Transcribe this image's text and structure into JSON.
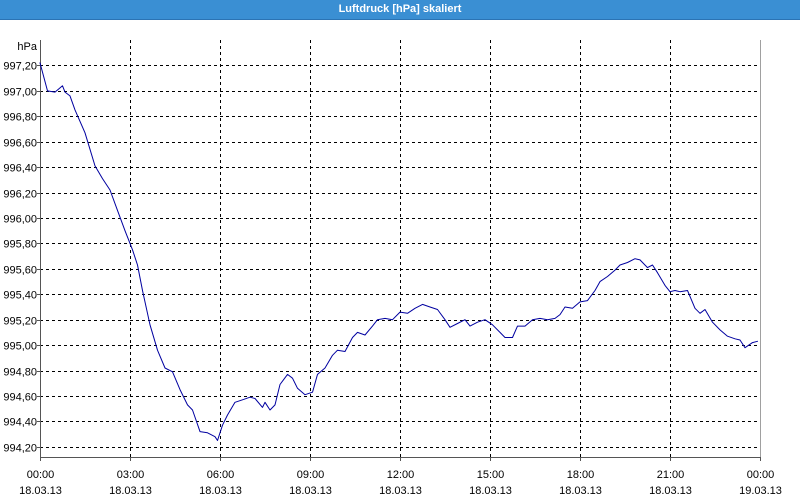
{
  "colors": {
    "title_bar": "#3a8fd3",
    "title_text": "#ffffff",
    "background": "#ffffff",
    "grid": "#000000",
    "axis": "#555555"
  },
  "chart_data": {
    "type": "line",
    "title": "Luftdruck [hPa] skaliert",
    "ylabel": "hPa",
    "xlim": [
      "18.03.13 00:00",
      "19.03.13 00:00"
    ],
    "ylim": [
      994.12,
      997.4
    ],
    "grid": true,
    "y_ticks": [
      "997,20",
      "997,00",
      "996,80",
      "996,60",
      "996,40",
      "996,20",
      "996,00",
      "995,80",
      "995,60",
      "995,40",
      "995,20",
      "995,00",
      "994,80",
      "994,60",
      "994,40",
      "994,20"
    ],
    "x_ticks": [
      {
        "time": "00:00",
        "date": "18.03.13"
      },
      {
        "time": "03:00",
        "date": "18.03.13"
      },
      {
        "time": "06:00",
        "date": "18.03.13"
      },
      {
        "time": "09:00",
        "date": "18.03.13"
      },
      {
        "time": "12:00",
        "date": "18.03.13"
      },
      {
        "time": "15:00",
        "date": "18.03.13"
      },
      {
        "time": "18:00",
        "date": "18.03.13"
      },
      {
        "time": "21:00",
        "date": "18.03.13"
      },
      {
        "time": "00:00",
        "date": "19.03.13"
      }
    ],
    "series": [
      {
        "color": "#0000a0",
        "x": [
          "18.03.13 00:00",
          "18.03.13 00:15",
          "18.03.13 00:30",
          "18.03.13 00:45",
          "18.03.13 00:50",
          "18.03.13 01:00",
          "18.03.13 01:10",
          "18.03.13 01:30",
          "18.03.13 01:50",
          "18.03.13 02:05",
          "18.03.13 02:20",
          "18.03.13 02:35",
          "18.03.13 02:50",
          "18.03.13 03:05",
          "18.03.13 03:15",
          "18.03.13 03:25",
          "18.03.13 03:40",
          "18.03.13 03:55",
          "18.03.13 04:10",
          "18.03.13 04:25",
          "18.03.13 04:40",
          "18.03.13 04:55",
          "18.03.13 05:05",
          "18.03.13 05:20",
          "18.03.13 05:35",
          "18.03.13 05:50",
          "18.03.13 05:55",
          "18.03.13 06:05",
          "18.03.13 06:15",
          "18.03.13 06:30",
          "18.03.13 06:45",
          "18.03.13 07:00",
          "18.03.13 07:10",
          "18.03.13 07:25",
          "18.03.13 07:30",
          "18.03.13 07:40",
          "18.03.13 07:50",
          "18.03.13 08:00",
          "18.03.13 08:15",
          "18.03.13 08:25",
          "18.03.13 08:35",
          "18.03.13 08:50",
          "18.03.13 09:05",
          "18.03.13 09:15",
          "18.03.13 09:30",
          "18.03.13 09:45",
          "18.03.13 09:55",
          "18.03.13 10:10",
          "18.03.13 10:25",
          "18.03.13 10:35",
          "18.03.13 10:50",
          "18.03.13 11:05",
          "18.03.13 11:15",
          "18.03.13 11:30",
          "18.03.13 11:45",
          "18.03.13 12:00",
          "18.03.13 12:15",
          "18.03.13 12:30",
          "18.03.13 12:45",
          "18.03.13 13:00",
          "18.03.13 13:15",
          "18.03.13 13:30",
          "18.03.13 13:40",
          "18.03.13 13:55",
          "18.03.13 14:10",
          "18.03.13 14:20",
          "18.03.13 14:35",
          "18.03.13 14:50",
          "18.03.13 15:05",
          "18.03.13 15:20",
          "18.03.13 15:30",
          "18.03.13 15:45",
          "18.03.13 15:55",
          "18.03.13 16:10",
          "18.03.13 16:25",
          "18.03.13 16:40",
          "18.03.13 16:55",
          "18.03.13 17:10",
          "18.03.13 17:20",
          "18.03.13 17:30",
          "18.03.13 17:45",
          "18.03.13 18:00",
          "18.03.13 18:15",
          "18.03.13 18:30",
          "18.03.13 18:40",
          "18.03.13 18:55",
          "18.03.13 19:10",
          "18.03.13 19:20",
          "18.03.13 19:35",
          "18.03.13 19:50",
          "18.03.13 20:00",
          "18.03.13 20:15",
          "18.03.13 20:25",
          "18.03.13 20:35",
          "18.03.13 20:50",
          "18.03.13 21:00",
          "18.03.13 21:10",
          "18.03.13 21:20",
          "18.03.13 21:35",
          "18.03.13 21:50",
          "18.03.13 22:00",
          "18.03.13 22:10",
          "18.03.13 22:25",
          "18.03.13 22:40",
          "18.03.13 22:55",
          "18.03.13 23:10",
          "18.03.13 23:20",
          "18.03.13 23:30",
          "18.03.13 23:45",
          "18.03.13 23:55"
        ],
        "y": [
          997.22,
          997.0,
          996.99,
          997.04,
          996.99,
          996.96,
          996.85,
          996.67,
          996.41,
          996.31,
          996.22,
          996.06,
          995.9,
          995.75,
          995.63,
          995.43,
          995.16,
          994.96,
          994.82,
          994.79,
          994.65,
          994.53,
          994.49,
          994.32,
          994.31,
          994.28,
          994.25,
          994.37,
          994.45,
          994.55,
          994.57,
          994.59,
          994.58,
          994.51,
          994.55,
          994.49,
          994.53,
          994.69,
          994.77,
          994.74,
          994.66,
          994.61,
          994.63,
          994.77,
          994.82,
          994.92,
          994.96,
          994.95,
          995.06,
          995.1,
          995.08,
          995.15,
          995.2,
          995.21,
          995.2,
          995.26,
          995.25,
          995.29,
          995.32,
          995.3,
          995.28,
          995.2,
          995.14,
          995.17,
          995.2,
          995.15,
          995.18,
          995.2,
          995.16,
          995.1,
          995.06,
          995.06,
          995.15,
          995.15,
          995.2,
          995.21,
          995.2,
          995.21,
          995.24,
          995.3,
          995.29,
          995.34,
          995.35,
          995.43,
          995.5,
          995.54,
          995.59,
          995.63,
          995.65,
          995.68,
          995.67,
          995.61,
          995.63,
          995.57,
          995.47,
          995.42,
          995.43,
          995.42,
          995.43,
          995.29,
          995.25,
          995.28,
          995.18,
          995.12,
          995.07,
          995.05,
          995.04,
          994.98,
          995.02,
          995.03
        ]
      }
    ]
  }
}
